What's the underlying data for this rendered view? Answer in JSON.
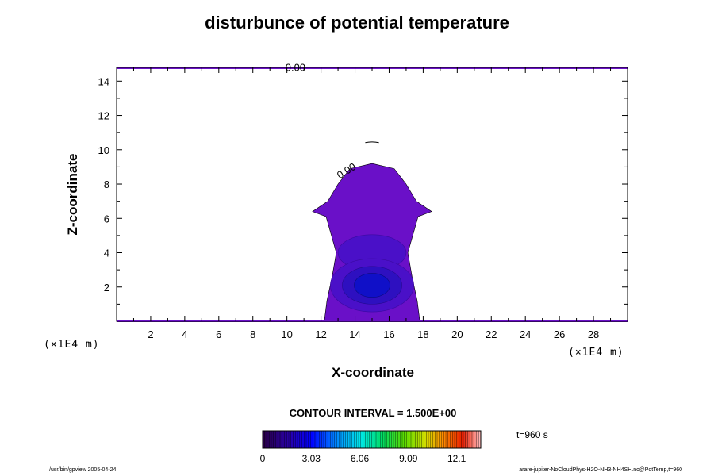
{
  "chart_data": {
    "type": "heatmap",
    "title": "disturbunce of potential temperature",
    "xlabel": "X-coordinate",
    "ylabel": "Z-coordinate",
    "x_unit": "(×1E4 m)",
    "z_unit": "(×1E4 m)",
    "xlim": [
      0,
      30
    ],
    "ylim": [
      0,
      14.8
    ],
    "x_ticks": [
      2,
      4,
      6,
      8,
      10,
      12,
      14,
      16,
      18,
      20,
      22,
      24,
      26,
      28
    ],
    "y_ticks": [
      2,
      4,
      6,
      8,
      10,
      12,
      14
    ],
    "contour_labels": [
      {
        "text": "0.00",
        "x": 10.5,
        "z": 14.6
      },
      {
        "text": "0.00",
        "x": 13.6,
        "z": 8.6
      }
    ],
    "anomaly": {
      "center_x": 15.0,
      "center_z": 2.1,
      "max_value": 3.0,
      "secondary_center_z": 4.0,
      "plume_top_z": 9.2,
      "plume_x_range": [
        12.2,
        17.8
      ]
    },
    "contour_interval": "CONTOUR INTERVAL = 1.500E+00",
    "colorbar": {
      "min": 0,
      "max": 13.6,
      "tick_labels": [
        "0",
        "3.03",
        "6.06",
        "9.09",
        "12.1"
      ],
      "tick_values": [
        0,
        3.03,
        6.06,
        9.09,
        12.1
      ]
    },
    "time_label": "t=960 s",
    "colors": {
      "plume": "#6a10c8",
      "inner_1": "#4a10c8",
      "inner_2": "#2e10c0",
      "core": "#1010c8",
      "boundary_line": "#6a10c8"
    }
  },
  "footer": {
    "left": "/usr/bin/gpview 2005-04-24",
    "right": "arare-jupiter-NoCloudPhys-H2O-NH3-NH4SH.nc@PotTemp,t=960"
  }
}
